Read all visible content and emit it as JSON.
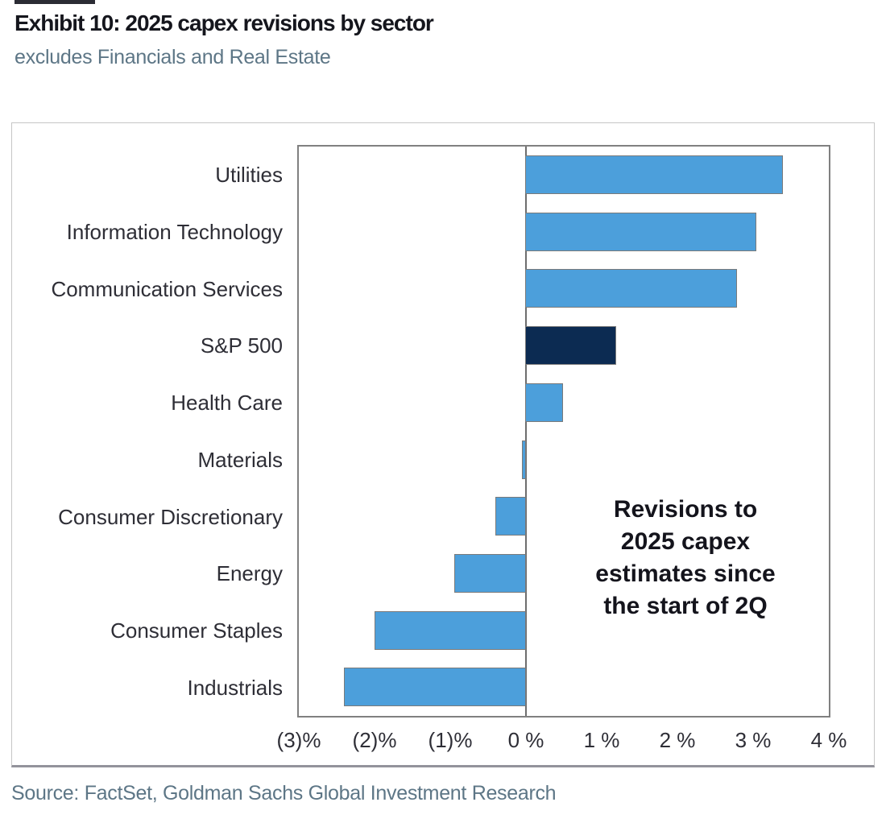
{
  "header": {
    "title": "Exhibit 10: 2025 capex revisions by sector",
    "subtitle": "excludes Financials and Real Estate"
  },
  "annotation": "Revisions to\n2025 capex\nestimates since\nthe start of 2Q",
  "footer": {
    "source": "Source: FactSet, Goldman Sachs Global Investment Research"
  },
  "chart_data": {
    "type": "bar",
    "orientation": "horizontal",
    "title": "Exhibit 10: 2025 capex revisions by sector",
    "subtitle": "excludes Financials and Real Estate",
    "xlabel": "Revisions to 2025 capex estimates since the start of 2Q (%)",
    "unit": "%",
    "categories": [
      "Utilities",
      "Information Technology",
      "Communication Services",
      "S&P 500",
      "Health Care",
      "Materials",
      "Consumer Discretionary",
      "Energy",
      "Consumer Staples",
      "Industrials"
    ],
    "values": [
      3.4,
      3.05,
      2.8,
      1.2,
      0.5,
      -0.05,
      -0.4,
      -0.95,
      -2.0,
      -2.4
    ],
    "highlight_category": "S&P 500",
    "xlim": [
      -3,
      4
    ],
    "tick_values": [
      -3,
      -2,
      -1,
      0,
      1,
      2,
      3,
      4
    ],
    "tick_labels": [
      "(3)%",
      "(2)%",
      "(1)%",
      "0 %",
      "1 %",
      "2 %",
      "3 %",
      "4 %"
    ],
    "grid": false,
    "legend": false,
    "colors": {
      "bar": "#4c9fdb",
      "highlight_bar": "#0c2b52",
      "bar_border": "#7a7a7a",
      "axis_line": "#6e6e6e",
      "text": "#2e2e36",
      "muted_text": "#5d7686"
    }
  }
}
